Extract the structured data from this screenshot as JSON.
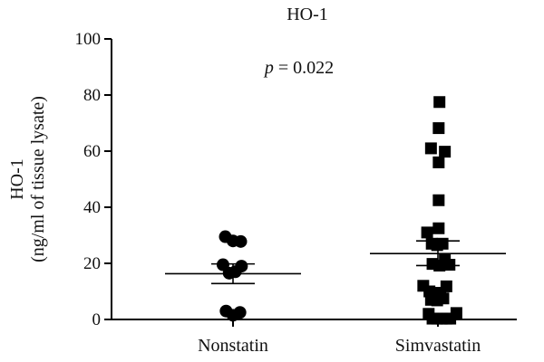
{
  "chart_data": {
    "type": "scatter",
    "title": "HO-1",
    "ylabel_line1": "HO-1",
    "ylabel_line2": "(ng/ml of tissue lysate)",
    "annotation_p": "p",
    "annotation_value": " = 0.022",
    "ylim": [
      0,
      100
    ],
    "yticks": [
      0,
      20,
      40,
      60,
      80,
      100
    ],
    "categories": [
      "Nonstatin",
      "Simvastatin"
    ],
    "series": [
      {
        "category": "Nonstatin",
        "marker": "circle",
        "mean": 16.3,
        "sem_low": 12.8,
        "sem_high": 19.8,
        "points": [
          {
            "offset": -0.5,
            "y": 29.5
          },
          {
            "offset": 0.0,
            "y": 28.0
          },
          {
            "offset": 0.5,
            "y": 27.8
          },
          {
            "offset": -0.65,
            "y": 19.5
          },
          {
            "offset": -0.25,
            "y": 16.5
          },
          {
            "offset": 0.15,
            "y": 17.0
          },
          {
            "offset": 0.55,
            "y": 19.0
          },
          {
            "offset": -0.45,
            "y": 3.0
          },
          {
            "offset": 0.45,
            "y": 2.5
          },
          {
            "offset": 0.0,
            "y": 1.5
          }
        ]
      },
      {
        "category": "Simvastatin",
        "marker": "square",
        "mean": 23.5,
        "sem_low": 19.2,
        "sem_high": 28.0,
        "points": [
          {
            "offset": 0.1,
            "y": 77.5
          },
          {
            "offset": 0.05,
            "y": 68.2
          },
          {
            "offset": -0.45,
            "y": 61.0
          },
          {
            "offset": 0.45,
            "y": 59.8
          },
          {
            "offset": 0.05,
            "y": 56.0
          },
          {
            "offset": 0.05,
            "y": 42.5
          },
          {
            "offset": -0.7,
            "y": 31.0
          },
          {
            "offset": 0.05,
            "y": 32.5
          },
          {
            "offset": -0.4,
            "y": 27.0
          },
          {
            "offset": -0.05,
            "y": 26.5
          },
          {
            "offset": 0.3,
            "y": 27.0
          },
          {
            "offset": 0.45,
            "y": 21.5
          },
          {
            "offset": 0.1,
            "y": 19.2
          },
          {
            "offset": -0.35,
            "y": 19.8
          },
          {
            "offset": 0.75,
            "y": 19.5
          },
          {
            "offset": -0.95,
            "y": 12.0
          },
          {
            "offset": 0.55,
            "y": 11.8
          },
          {
            "offset": -0.55,
            "y": 10.0
          },
          {
            "offset": -0.2,
            "y": 9.5
          },
          {
            "offset": 0.15,
            "y": 8.0
          },
          {
            "offset": -0.45,
            "y": 7.0
          },
          {
            "offset": -0.05,
            "y": 6.8
          },
          {
            "offset": 0.35,
            "y": 7.5
          },
          {
            "offset": -0.6,
            "y": 2.0
          },
          {
            "offset": 1.2,
            "y": 2.3
          },
          {
            "offset": -0.35,
            "y": 0.3
          },
          {
            "offset": -0.05,
            "y": 0.3
          },
          {
            "offset": 0.25,
            "y": 0.3
          },
          {
            "offset": 0.55,
            "y": 0.3
          },
          {
            "offset": 0.8,
            "y": 0.3
          }
        ]
      }
    ]
  }
}
